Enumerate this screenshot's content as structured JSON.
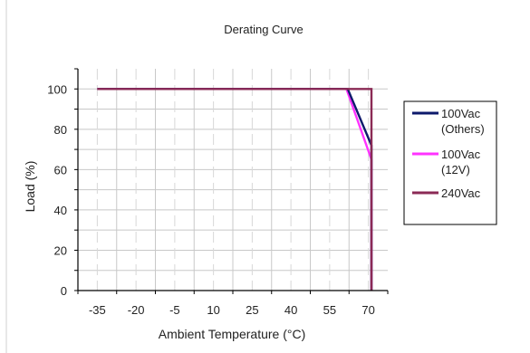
{
  "chart_data": {
    "type": "line",
    "title": "Derating Curve",
    "xlabel": "Ambient Temperature (°C)",
    "ylabel": "Load (%)",
    "x_ticks": [
      "-35",
      "-20",
      "-5",
      "10",
      "25",
      "40",
      "55",
      "70"
    ],
    "y_ticks": [
      "0",
      "20",
      "40",
      "60",
      "80",
      "100"
    ],
    "ylim": [
      0,
      110
    ],
    "grid": true,
    "legend_position": "right",
    "series": [
      {
        "name_lines": [
          "100Vac",
          "(Others)"
        ],
        "color": "#0d1a6b",
        "points": [
          [
            -35,
            100
          ],
          [
            62,
            100
          ],
          [
            70,
            72
          ],
          [
            70,
            0
          ]
        ]
      },
      {
        "name_lines": [
          "100Vac",
          "(12V)"
        ],
        "color": "#ff33ff",
        "points": [
          [
            -35,
            100
          ],
          [
            61.5,
            100
          ],
          [
            70,
            65
          ],
          [
            70,
            0
          ]
        ]
      },
      {
        "name_lines": [
          "240Vac"
        ],
        "color": "#8b2a55",
        "points": [
          [
            -35,
            100
          ],
          [
            70,
            100
          ],
          [
            70,
            0
          ]
        ]
      }
    ]
  }
}
